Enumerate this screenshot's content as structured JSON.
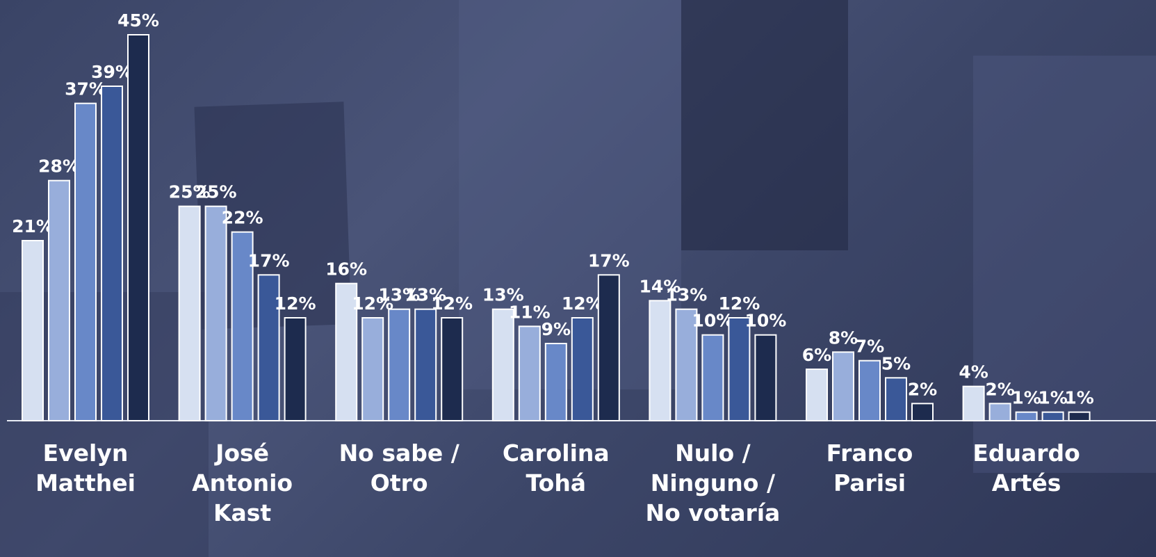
{
  "chart_data": {
    "type": "bar",
    "categories": [
      "Evelyn Matthei",
      "José Antonio Kast",
      "No sabe / Otro",
      "Carolina Tohá",
      "Nulo / Ninguno / No votaría",
      "Franco Parisi",
      "Eduardo Artés"
    ],
    "series": [
      {
        "color": "#d6e0f1",
        "values": [
          21,
          25,
          16,
          13,
          14,
          6,
          4
        ],
        "value_labels": [
          "21%",
          "25%",
          "16%",
          "13%",
          "14%",
          "6%",
          "4%"
        ]
      },
      {
        "color": "#98aedb",
        "values": [
          28,
          25,
          12,
          11,
          13,
          8,
          2
        ],
        "value_labels": [
          "28%",
          "25%",
          "12%",
          "11%",
          "13%",
          "8%",
          "2%"
        ]
      },
      {
        "color": "#6888c8",
        "values": [
          37,
          22,
          13,
          9,
          10,
          7,
          1
        ],
        "value_labels": [
          "37%",
          "22%",
          "13%",
          "9%",
          "10%",
          "7%",
          "1%"
        ]
      },
      {
        "color": "#3a5898",
        "values": [
          39,
          17,
          13,
          12,
          12,
          5,
          1
        ],
        "value_labels": [
          "39%",
          "17%",
          "13%",
          "12%",
          "12%",
          "5%",
          "1%"
        ]
      },
      {
        "color": "#1d2b4e",
        "values": [
          45,
          12,
          12,
          17,
          10,
          2,
          1
        ],
        "value_labels": [
          "45%",
          "12%",
          "12%",
          "17%",
          "10%",
          "2%",
          "1%"
        ]
      }
    ],
    "ylim": [
      0,
      45
    ]
  }
}
